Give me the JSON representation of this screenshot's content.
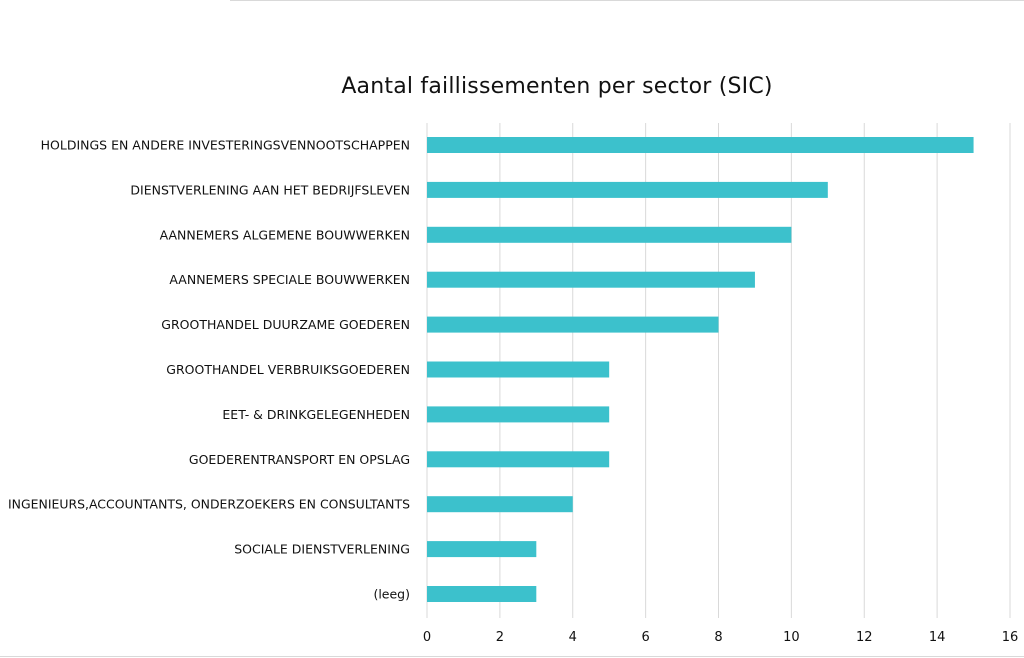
{
  "chart_data": {
    "type": "bar",
    "orientation": "horizontal",
    "title": "Aantal faillissementen per sector (SIC)",
    "xlabel": "",
    "ylabel": "",
    "xlim": [
      0,
      16
    ],
    "x_ticks": [
      "0",
      "2",
      "4",
      "6",
      "8",
      "10",
      "12",
      "14",
      "16"
    ],
    "grid": true,
    "legend": "none",
    "bar_color": "#3cc1cc",
    "categories": [
      "HOLDINGS EN ANDERE INVESTERINGSVENNOOTSCHAPPEN",
      "DIENSTVERLENING AAN HET BEDRIJFSLEVEN",
      "AANNEMERS ALGEMENE BOUWWERKEN",
      "AANNEMERS SPECIALE BOUWWERKEN",
      "GROOTHANDEL DUURZAME GOEDEREN",
      "GROOTHANDEL VERBRUIKSGOEDEREN",
      "EET- & DRINKGELEGENHEDEN",
      "GOEDERENTRANSPORT EN OPSLAG",
      "INGENIEURS,ACCOUNTANTS, ONDERZOEKERS EN CONSULTANTS",
      "SOCIALE DIENSTVERLENING",
      "(leeg)"
    ],
    "values": [
      15,
      11,
      10,
      9,
      8,
      5,
      5,
      5,
      4,
      3,
      3
    ]
  }
}
